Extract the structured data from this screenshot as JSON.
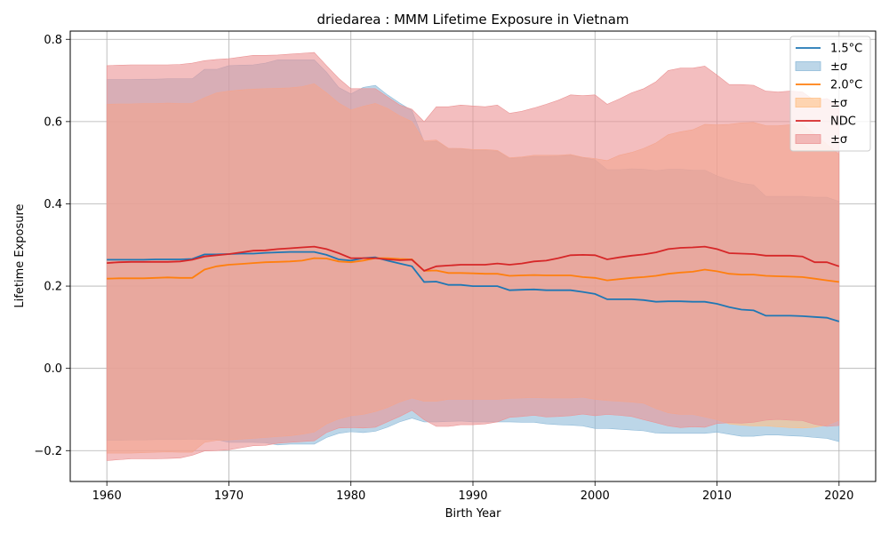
{
  "chart_data": {
    "type": "line",
    "title": "driedarea : MMM Lifetime Exposure in Vietnam",
    "xlabel": "Birth Year",
    "ylabel": "Lifetime Exposure",
    "xlim": [
      1957,
      2023
    ],
    "ylim": [
      -0.275,
      0.82
    ],
    "xticks": [
      1960,
      1970,
      1980,
      1990,
      2000,
      2010,
      2020
    ],
    "yticks": [
      -0.2,
      0.0,
      0.2,
      0.4,
      0.6,
      0.8
    ],
    "ytick_labels": [
      "−0.2",
      "0.0",
      "0.2",
      "0.4",
      "0.6",
      "0.8"
    ],
    "grid": true,
    "legend_position": "upper-right",
    "x": [
      1960,
      1961,
      1962,
      1963,
      1964,
      1965,
      1966,
      1967,
      1968,
      1969,
      1970,
      1971,
      1972,
      1973,
      1974,
      1975,
      1976,
      1977,
      1978,
      1979,
      1980,
      1981,
      1982,
      1983,
      1984,
      1985,
      1986,
      1987,
      1988,
      1989,
      1990,
      1991,
      1992,
      1993,
      1994,
      1995,
      1996,
      1997,
      1998,
      1999,
      2000,
      2001,
      2002,
      2003,
      2004,
      2005,
      2006,
      2007,
      2008,
      2009,
      2010,
      2011,
      2012,
      2013,
      2014,
      2015,
      2016,
      2017,
      2018,
      2019,
      2020
    ],
    "series": [
      {
        "name": "1.5°C",
        "band_label": "±σ",
        "color": "#1f77b4",
        "band_color": "#8fbbd9",
        "mean": [
          0.264,
          0.264,
          0.264,
          0.264,
          0.265,
          0.265,
          0.265,
          0.266,
          0.277,
          0.277,
          0.278,
          0.279,
          0.279,
          0.281,
          0.282,
          0.283,
          0.283,
          0.283,
          0.276,
          0.265,
          0.262,
          0.268,
          0.27,
          0.262,
          0.255,
          0.248,
          0.21,
          0.211,
          0.203,
          0.203,
          0.2,
          0.2,
          0.2,
          0.19,
          0.191,
          0.192,
          0.19,
          0.19,
          0.19,
          0.186,
          0.181,
          0.168,
          0.168,
          0.168,
          0.166,
          0.162,
          0.163,
          0.163,
          0.162,
          0.162,
          0.157,
          0.149,
          0.143,
          0.141,
          0.128,
          0.128,
          0.128,
          0.127,
          0.125,
          0.123,
          0.114
        ],
        "upper": [
          0.702,
          0.702,
          0.702,
          0.703,
          0.703,
          0.704,
          0.704,
          0.704,
          0.727,
          0.727,
          0.736,
          0.737,
          0.738,
          0.742,
          0.75,
          0.75,
          0.75,
          0.75,
          0.72,
          0.683,
          0.667,
          0.683,
          0.688,
          0.665,
          0.645,
          0.627,
          0.55,
          0.552,
          0.535,
          0.534,
          0.53,
          0.53,
          0.528,
          0.51,
          0.512,
          0.515,
          0.515,
          0.516,
          0.518,
          0.512,
          0.507,
          0.483,
          0.483,
          0.485,
          0.484,
          0.481,
          0.484,
          0.484,
          0.482,
          0.482,
          0.468,
          0.458,
          0.45,
          0.446,
          0.418,
          0.418,
          0.418,
          0.418,
          0.416,
          0.416,
          0.406
        ],
        "lower": [
          -0.175,
          -0.175,
          -0.174,
          -0.174,
          -0.173,
          -0.173,
          -0.173,
          -0.172,
          -0.173,
          -0.173,
          -0.18,
          -0.18,
          -0.18,
          -0.181,
          -0.186,
          -0.184,
          -0.184,
          -0.184,
          -0.168,
          -0.158,
          -0.154,
          -0.156,
          -0.153,
          -0.143,
          -0.13,
          -0.121,
          -0.13,
          -0.13,
          -0.129,
          -0.128,
          -0.13,
          -0.13,
          -0.13,
          -0.13,
          -0.131,
          -0.131,
          -0.135,
          -0.137,
          -0.138,
          -0.14,
          -0.146,
          -0.146,
          -0.148,
          -0.15,
          -0.152,
          -0.157,
          -0.158,
          -0.158,
          -0.158,
          -0.158,
          -0.155,
          -0.16,
          -0.165,
          -0.165,
          -0.162,
          -0.162,
          -0.164,
          -0.165,
          -0.168,
          -0.17,
          -0.178
        ]
      },
      {
        "name": "2.0°C",
        "band_label": "±σ",
        "color": "#ff7f0e",
        "band_color": "#ffbf86",
        "mean": [
          0.218,
          0.219,
          0.219,
          0.219,
          0.22,
          0.221,
          0.22,
          0.22,
          0.24,
          0.248,
          0.252,
          0.254,
          0.256,
          0.258,
          0.259,
          0.26,
          0.262,
          0.268,
          0.267,
          0.26,
          0.258,
          0.262,
          0.268,
          0.268,
          0.266,
          0.265,
          0.237,
          0.238,
          0.232,
          0.232,
          0.231,
          0.23,
          0.23,
          0.225,
          0.226,
          0.227,
          0.226,
          0.226,
          0.226,
          0.222,
          0.22,
          0.214,
          0.217,
          0.22,
          0.222,
          0.225,
          0.23,
          0.233,
          0.235,
          0.24,
          0.236,
          0.23,
          0.228,
          0.228,
          0.225,
          0.224,
          0.223,
          0.222,
          0.218,
          0.214,
          0.21
        ],
        "upper": [
          0.642,
          0.643,
          0.643,
          0.644,
          0.644,
          0.645,
          0.644,
          0.644,
          0.658,
          0.67,
          0.674,
          0.677,
          0.679,
          0.68,
          0.681,
          0.682,
          0.685,
          0.692,
          0.67,
          0.645,
          0.628,
          0.637,
          0.644,
          0.632,
          0.614,
          0.6,
          0.553,
          0.555,
          0.535,
          0.535,
          0.532,
          0.532,
          0.53,
          0.512,
          0.514,
          0.518,
          0.518,
          0.518,
          0.52,
          0.513,
          0.51,
          0.505,
          0.518,
          0.525,
          0.535,
          0.548,
          0.568,
          0.575,
          0.58,
          0.593,
          0.592,
          0.593,
          0.597,
          0.598,
          0.59,
          0.59,
          0.592,
          0.593,
          0.57,
          0.545,
          0.52
        ],
        "lower": [
          -0.206,
          -0.206,
          -0.206,
          -0.205,
          -0.204,
          -0.203,
          -0.204,
          -0.204,
          -0.18,
          -0.175,
          -0.174,
          -0.172,
          -0.17,
          -0.168,
          -0.166,
          -0.164,
          -0.16,
          -0.155,
          -0.135,
          -0.123,
          -0.115,
          -0.112,
          -0.105,
          -0.095,
          -0.082,
          -0.072,
          -0.08,
          -0.08,
          -0.075,
          -0.075,
          -0.075,
          -0.075,
          -0.075,
          -0.073,
          -0.072,
          -0.071,
          -0.072,
          -0.072,
          -0.072,
          -0.07,
          -0.075,
          -0.078,
          -0.08,
          -0.082,
          -0.085,
          -0.098,
          -0.108,
          -0.112,
          -0.112,
          -0.118,
          -0.125,
          -0.135,
          -0.138,
          -0.14,
          -0.14,
          -0.142,
          -0.144,
          -0.145,
          -0.143,
          -0.138,
          -0.126
        ]
      },
      {
        "name": "NDC",
        "band_label": "±σ",
        "color": "#d62728",
        "band_color": "#eb9394",
        "mean": [
          0.256,
          0.258,
          0.259,
          0.259,
          0.259,
          0.259,
          0.26,
          0.264,
          0.272,
          0.275,
          0.278,
          0.282,
          0.286,
          0.287,
          0.29,
          0.292,
          0.294,
          0.296,
          0.29,
          0.28,
          0.268,
          0.268,
          0.268,
          0.265,
          0.263,
          0.264,
          0.237,
          0.248,
          0.25,
          0.252,
          0.252,
          0.252,
          0.255,
          0.252,
          0.255,
          0.26,
          0.262,
          0.268,
          0.275,
          0.276,
          0.275,
          0.265,
          0.27,
          0.274,
          0.277,
          0.282,
          0.29,
          0.293,
          0.294,
          0.296,
          0.29,
          0.28,
          0.279,
          0.278,
          0.274,
          0.274,
          0.274,
          0.272,
          0.258,
          0.258,
          0.248
        ],
        "upper": [
          0.736,
          0.737,
          0.738,
          0.738,
          0.738,
          0.738,
          0.739,
          0.742,
          0.748,
          0.751,
          0.753,
          0.757,
          0.761,
          0.761,
          0.762,
          0.764,
          0.766,
          0.768,
          0.736,
          0.705,
          0.68,
          0.68,
          0.68,
          0.66,
          0.64,
          0.63,
          0.6,
          0.636,
          0.636,
          0.64,
          0.638,
          0.636,
          0.64,
          0.62,
          0.625,
          0.633,
          0.642,
          0.652,
          0.665,
          0.663,
          0.665,
          0.642,
          0.655,
          0.67,
          0.68,
          0.697,
          0.724,
          0.73,
          0.73,
          0.735,
          0.713,
          0.69,
          0.69,
          0.688,
          0.674,
          0.672,
          0.674,
          0.672,
          0.651,
          0.656,
          0.64
        ],
        "lower": [
          -0.224,
          -0.222,
          -0.22,
          -0.22,
          -0.22,
          -0.219,
          -0.218,
          -0.211,
          -0.201,
          -0.2,
          -0.198,
          -0.193,
          -0.188,
          -0.187,
          -0.182,
          -0.18,
          -0.178,
          -0.176,
          -0.156,
          -0.145,
          -0.144,
          -0.145,
          -0.143,
          -0.13,
          -0.117,
          -0.102,
          -0.125,
          -0.141,
          -0.141,
          -0.137,
          -0.137,
          -0.135,
          -0.13,
          -0.119,
          -0.117,
          -0.114,
          -0.118,
          -0.117,
          -0.115,
          -0.111,
          -0.115,
          -0.112,
          -0.114,
          -0.117,
          -0.125,
          -0.132,
          -0.14,
          -0.144,
          -0.142,
          -0.143,
          -0.134,
          -0.132,
          -0.133,
          -0.131,
          -0.126,
          -0.124,
          -0.126,
          -0.127,
          -0.136,
          -0.141,
          -0.139
        ]
      }
    ]
  }
}
